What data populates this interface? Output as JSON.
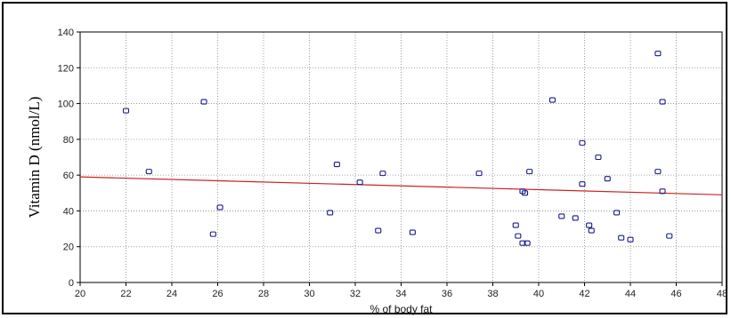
{
  "chart_data": {
    "type": "scatter",
    "title": "",
    "xlabel": "% of body fat",
    "ylabel": "Vitamin D (nmol/L)",
    "xlim": [
      20,
      48
    ],
    "ylim": [
      0,
      140
    ],
    "x_ticks": [
      20,
      22,
      24,
      26,
      28,
      30,
      32,
      34,
      36,
      38,
      40,
      42,
      44,
      46,
      48
    ],
    "y_ticks": [
      0,
      20,
      40,
      60,
      80,
      100,
      120,
      140
    ],
    "grid": true,
    "legend": "none",
    "colors": {
      "points": "#1a1a8c",
      "trend_line": "#cc2222",
      "grid": "#888888",
      "plot_background": "#ffffff"
    },
    "series": [
      {
        "values": [
          {
            "x": 22.0,
            "y": 96
          },
          {
            "x": 23.0,
            "y": 62
          },
          {
            "x": 25.4,
            "y": 101
          },
          {
            "x": 25.8,
            "y": 27
          },
          {
            "x": 26.1,
            "y": 42
          },
          {
            "x": 30.9,
            "y": 39
          },
          {
            "x": 31.2,
            "y": 66
          },
          {
            "x": 32.2,
            "y": 56
          },
          {
            "x": 33.0,
            "y": 29
          },
          {
            "x": 33.2,
            "y": 61
          },
          {
            "x": 34.5,
            "y": 28
          },
          {
            "x": 37.4,
            "y": 61
          },
          {
            "x": 39.0,
            "y": 32
          },
          {
            "x": 39.1,
            "y": 26
          },
          {
            "x": 39.3,
            "y": 51
          },
          {
            "x": 39.3,
            "y": 22
          },
          {
            "x": 39.4,
            "y": 50
          },
          {
            "x": 39.5,
            "y": 22
          },
          {
            "x": 39.6,
            "y": 62
          },
          {
            "x": 40.6,
            "y": 102
          },
          {
            "x": 41.0,
            "y": 37
          },
          {
            "x": 41.6,
            "y": 36
          },
          {
            "x": 41.9,
            "y": 78
          },
          {
            "x": 41.9,
            "y": 55
          },
          {
            "x": 42.2,
            "y": 32
          },
          {
            "x": 42.3,
            "y": 29
          },
          {
            "x": 42.6,
            "y": 70
          },
          {
            "x": 43.0,
            "y": 58
          },
          {
            "x": 43.4,
            "y": 39
          },
          {
            "x": 43.6,
            "y": 25
          },
          {
            "x": 44.0,
            "y": 24
          },
          {
            "x": 45.2,
            "y": 128
          },
          {
            "x": 45.2,
            "y": 62
          },
          {
            "x": 45.4,
            "y": 101
          },
          {
            "x": 45.4,
            "y": 51
          },
          {
            "x": 45.7,
            "y": 26
          }
        ]
      }
    ],
    "trend_line": [
      {
        "x": 20,
        "y": 59
      },
      {
        "x": 48,
        "y": 49
      }
    ]
  }
}
